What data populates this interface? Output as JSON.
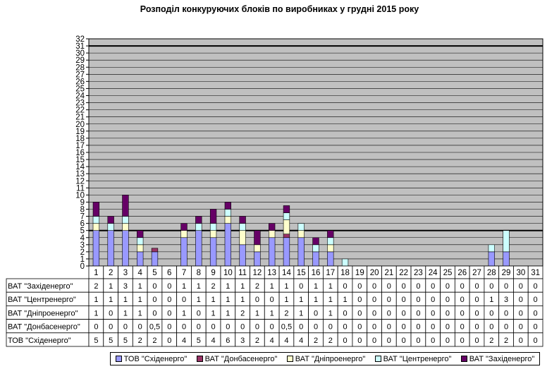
{
  "chart_data": {
    "type": "bar",
    "stacked": true,
    "title": "Розподіл конкуруючих блоків по виробниках у грудні 2015 року",
    "xlabel": "",
    "ylabel": "",
    "ylim": [
      0,
      32
    ],
    "yticks": [
      0,
      1,
      2,
      3,
      4,
      5,
      6,
      7,
      8,
      9,
      10,
      11,
      12,
      13,
      14,
      15,
      16,
      17,
      18,
      19,
      20,
      21,
      22,
      23,
      24,
      25,
      26,
      27,
      28,
      29,
      30,
      31,
      32
    ],
    "categories": [
      "1",
      "2",
      "3",
      "4",
      "5",
      "6",
      "7",
      "8",
      "9",
      "10",
      "11",
      "12",
      "13",
      "14",
      "15",
      "16",
      "17",
      "18",
      "19",
      "20",
      "21",
      "22",
      "23",
      "24",
      "25",
      "26",
      "27",
      "28",
      "29",
      "30",
      "31"
    ],
    "series": [
      {
        "name": "ТОВ \"Східенерго\"",
        "color": "#9999ff",
        "values": [
          5,
          5,
          5,
          2,
          2,
          0,
          4,
          5,
          4,
          6,
          3,
          2,
          4,
          4,
          4,
          2,
          2,
          0,
          0,
          0,
          0,
          0,
          0,
          0,
          0,
          0,
          0,
          2,
          2,
          0,
          0
        ],
        "labels": [
          "5",
          "5",
          "5",
          "2",
          "2",
          "0",
          "4",
          "5",
          "4",
          "6",
          "3",
          "2",
          "4",
          "4",
          "4",
          "2",
          "2",
          "0",
          "0",
          "0",
          "0",
          "0",
          "0",
          "0",
          "0",
          "0",
          "0",
          "2",
          "2",
          "0",
          "0"
        ]
      },
      {
        "name": "ВАТ \"Донбасенерго\"",
        "color": "#993366",
        "values": [
          0,
          0,
          0,
          0,
          0.5,
          0,
          0,
          0,
          0,
          0,
          0,
          0,
          0,
          0.5,
          0,
          0,
          0,
          0,
          0,
          0,
          0,
          0,
          0,
          0,
          0,
          0,
          0,
          0,
          0,
          0,
          0
        ],
        "labels": [
          "0",
          "0",
          "0",
          "0",
          "0,5",
          "0",
          "0",
          "0",
          "0",
          "0",
          "0",
          "0",
          "0",
          "0,5",
          "0",
          "0",
          "0",
          "0",
          "0",
          "0",
          "0",
          "0",
          "0",
          "0",
          "0",
          "0",
          "0",
          "0",
          "0",
          "0",
          "0"
        ]
      },
      {
        "name": "ВАТ \"Дніпроенерго\"",
        "color": "#ffffcc",
        "values": [
          1,
          0,
          1,
          1,
          0,
          0,
          1,
          0,
          1,
          1,
          2,
          1,
          1,
          2,
          1,
          0,
          1,
          0,
          0,
          0,
          0,
          0,
          0,
          0,
          0,
          0,
          0,
          0,
          0,
          0,
          0
        ],
        "labels": [
          "1",
          "0",
          "1",
          "1",
          "0",
          "0",
          "1",
          "0",
          "1",
          "1",
          "2",
          "1",
          "1",
          "2",
          "1",
          "0",
          "1",
          "0",
          "0",
          "0",
          "0",
          "0",
          "0",
          "0",
          "0",
          "0",
          "0",
          "0",
          "0",
          "0",
          "0"
        ]
      },
      {
        "name": "ВАТ \"Центренерго\"",
        "color": "#ccffff",
        "values": [
          1,
          1,
          1,
          1,
          0,
          0,
          0,
          1,
          1,
          1,
          1,
          0,
          0,
          1,
          1,
          1,
          1,
          1,
          0,
          0,
          0,
          0,
          0,
          0,
          0,
          0,
          0,
          1,
          3,
          0,
          0
        ],
        "labels": [
          "1",
          "1",
          "1",
          "1",
          "0",
          "0",
          "0",
          "1",
          "1",
          "1",
          "1",
          "0",
          "0",
          "1",
          "1",
          "1",
          "1",
          "1",
          "0",
          "0",
          "0",
          "0",
          "0",
          "0",
          "0",
          "0",
          "0",
          "1",
          "3",
          "0",
          "0"
        ]
      },
      {
        "name": "ВАТ \"Західенерго\"",
        "color": "#660066",
        "values": [
          2,
          1,
          3,
          1,
          0,
          0,
          1,
          1,
          2,
          1,
          1,
          2,
          1,
          1,
          0,
          1,
          1,
          0,
          0,
          0,
          0,
          0,
          0,
          0,
          0,
          0,
          0,
          0,
          0,
          0,
          0
        ],
        "labels": [
          "2",
          "1",
          "3",
          "1",
          "0",
          "0",
          "1",
          "1",
          "2",
          "1",
          "1",
          "2",
          "1",
          "1",
          "0",
          "1",
          "1",
          "0",
          "0",
          "0",
          "0",
          "0",
          "0",
          "0",
          "0",
          "0",
          "0",
          "0",
          "0",
          "0",
          "0"
        ]
      }
    ],
    "table_row_order": [
      4,
      3,
      2,
      1,
      0
    ],
    "reference_lines": [
      5,
      31
    ],
    "grid": true,
    "plot_background": "#c0c0c0",
    "legend_position": "bottom"
  }
}
